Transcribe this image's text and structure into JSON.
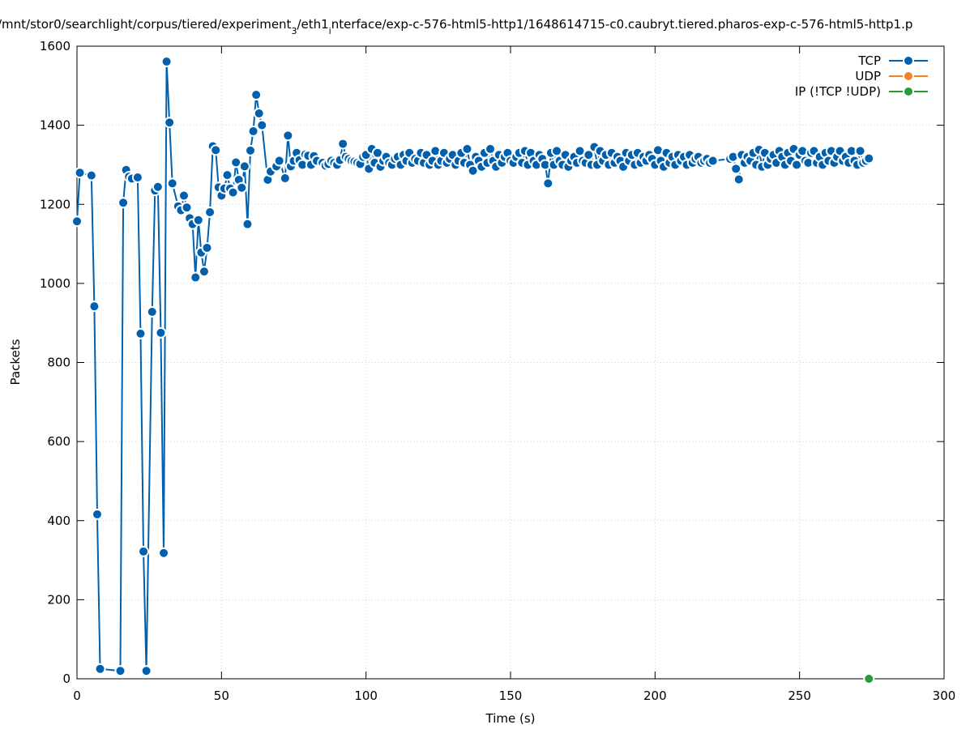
{
  "chart_data": {
    "type": "line",
    "title": [
      "/mnt/stor0/searchlight/corpus/tiered/experiment",
      "3",
      "/eth1",
      "i",
      "nterface/exp-c-576-html5-http1/1648614715-c0.caubryt.tiered.pharos-exp-c-576-html5-http1.p"
    ],
    "x_label": "Time (s)",
    "y_label": "Packets",
    "xlim": [
      0,
      300
    ],
    "ylim": [
      0,
      1600
    ],
    "xticks": [
      0,
      50,
      100,
      150,
      200,
      250,
      300
    ],
    "yticks": [
      0,
      200,
      400,
      600,
      800,
      1000,
      1200,
      1400,
      1600
    ],
    "grid": true,
    "legend": "top right",
    "series": [
      {
        "name": "TCP",
        "color": "#0060ad",
        "x": [
          0,
          1,
          5,
          6,
          7,
          8,
          15,
          16,
          17,
          18,
          19,
          21,
          22,
          23,
          24,
          26,
          27,
          28,
          29,
          30,
          31,
          32,
          33,
          35,
          36,
          37,
          38,
          39,
          40,
          41,
          42,
          43,
          44,
          45,
          46,
          47,
          48,
          49,
          50,
          51,
          52,
          53,
          54,
          55,
          56,
          57,
          58,
          59,
          60,
          61,
          62,
          63,
          64,
          66,
          67,
          69,
          70,
          72,
          73,
          74,
          75,
          76,
          77,
          78,
          79,
          80,
          81,
          82,
          83,
          85,
          86,
          87,
          88,
          89,
          90,
          91,
          92,
          93,
          94,
          95,
          96,
          97,
          98,
          99,
          100,
          101,
          102,
          103,
          104,
          105,
          106,
          107,
          108,
          109,
          110,
          111,
          112,
          113,
          114,
          115,
          116,
          117,
          118,
          119,
          120,
          121,
          122,
          123,
          124,
          125,
          126,
          127,
          128,
          129,
          130,
          131,
          132,
          133,
          134,
          135,
          136,
          137,
          138,
          139,
          140,
          141,
          142,
          143,
          144,
          145,
          146,
          147,
          148,
          149,
          150,
          151,
          152,
          153,
          154,
          155,
          156,
          157,
          158,
          159,
          160,
          161,
          162,
          163,
          164,
          165,
          166,
          167,
          168,
          169,
          170,
          171,
          172,
          173,
          174,
          175,
          176,
          177,
          178,
          179,
          180,
          181,
          182,
          183,
          184,
          185,
          186,
          187,
          188,
          189,
          190,
          191,
          192,
          193,
          194,
          195,
          196,
          197,
          198,
          199,
          200,
          201,
          202,
          203,
          204,
          205,
          206,
          207,
          208,
          209,
          210,
          211,
          212,
          213,
          214,
          215,
          216,
          217,
          218,
          219,
          220,
          226,
          227,
          228,
          229,
          230,
          231,
          232,
          233,
          234,
          235,
          236,
          237,
          238,
          239,
          240,
          241,
          242,
          243,
          244,
          245,
          246,
          247,
          248,
          249,
          250,
          251,
          252,
          253,
          254,
          255,
          256,
          257,
          258,
          259,
          260,
          261,
          262,
          263,
          264,
          265,
          266,
          267,
          268,
          269,
          270,
          271,
          272,
          273,
          274
        ],
        "values": [
          1157,
          1280,
          1273,
          942,
          416,
          25,
          20,
          1204,
          1287,
          1270,
          1265,
          1268,
          873,
          322,
          20,
          928,
          1235,
          1244,
          875,
          318,
          1561,
          1407,
          1253,
          1195,
          1185,
          1222,
          1192,
          1165,
          1150,
          1015,
          1160,
          1078,
          1030,
          1090,
          1180,
          1347,
          1337,
          1243,
          1222,
          1240,
          1274,
          1240,
          1230,
          1306,
          1262,
          1242,
          1296,
          1150,
          1336,
          1385,
          1477,
          1430,
          1400,
          1262,
          1283,
          1296,
          1310,
          1266,
          1374,
          1296,
          1310,
          1330,
          1312,
          1300,
          1326,
          1323,
          1300,
          1322,
          1310,
          1305,
          1298,
          1302,
          1310,
          1305,
          1300,
          1312,
          1353,
          1320,
          1315,
          1310,
          1308,
          1305,
          1302,
          1320,
          1325,
          1290,
          1340,
          1305,
          1330,
          1295,
          1310,
          1320,
          1305,
          1300,
          1315,
          1320,
          1300,
          1325,
          1310,
          1330,
          1305,
          1315,
          1310,
          1330,
          1305,
          1325,
          1300,
          1310,
          1335,
          1300,
          1310,
          1330,
          1305,
          1315,
          1325,
          1300,
          1310,
          1330,
          1305,
          1340,
          1300,
          1285,
          1320,
          1310,
          1295,
          1330,
          1305,
          1340,
          1310,
          1295,
          1325,
          1305,
          1320,
          1330,
          1310,
          1305,
          1320,
          1330,
          1305,
          1335,
          1300,
          1330,
          1310,
          1300,
          1325,
          1315,
          1300,
          1253,
          1330,
          1300,
          1335,
          1310,
          1300,
          1325,
          1295,
          1310,
          1320,
          1305,
          1335,
          1310,
          1305,
          1325,
          1300,
          1345,
          1300,
          1335,
          1310,
          1325,
          1300,
          1330,
          1305,
          1320,
          1310,
          1295,
          1330,
          1310,
          1325,
          1300,
          1330,
          1305,
          1320,
          1310,
          1325,
          1315,
          1300,
          1337,
          1310,
          1295,
          1330,
          1305,
          1320,
          1300,
          1325,
          1310,
          1320,
          1300,
          1325,
          1305,
          1315,
          1320,
          1305,
          1310,
          1315,
          1305,
          1310,
          1315,
          1320,
          1290,
          1263,
          1325,
          1305,
          1320,
          1310,
          1330,
          1300,
          1338,
          1295,
          1330,
          1300,
          1315,
          1325,
          1305,
          1335,
          1320,
          1300,
          1330,
          1310,
          1340,
          1300,
          1325,
          1335,
          1310,
          1305,
          1330,
          1335,
          1305,
          1320,
          1300,
          1330,
          1310,
          1335,
          1305,
          1320,
          1335,
          1310,
          1320,
          1305,
          1335,
          1310,
          1300,
          1335,
          1305,
          1310,
          1316
        ]
      },
      {
        "name": "UDP",
        "color": "#f5821f",
        "x": [],
        "values": []
      },
      {
        "name": "IP (!TCP  !UDP)",
        "color": "#2a9a3a",
        "x": [
          274
        ],
        "values": [
          0
        ]
      }
    ]
  }
}
